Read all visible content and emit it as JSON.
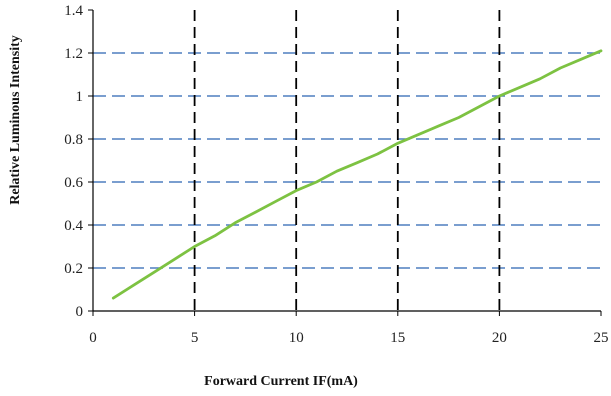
{
  "chart_data": {
    "type": "line",
    "title": "",
    "xlabel": "Forward Current IF(mA)",
    "ylabel": "Relative Luminous Intensity",
    "xlim": [
      0,
      25
    ],
    "ylim": [
      0,
      1.4
    ],
    "x_ticks": [
      "0",
      "5",
      "10",
      "15",
      "20",
      "25"
    ],
    "y_ticks": [
      "0",
      "0.2",
      "0.4",
      "0.6",
      "0.8",
      "1",
      "1.2",
      "1.4"
    ],
    "grid": {
      "vertical": "black dashed at 5, 10, 15, 20",
      "horizontal": "blue dashed at 0.2 through 1.2"
    },
    "legend": "none",
    "colors": {
      "line": "#7dc242",
      "h_grid": "#4f7fbf",
      "v_grid": "#000000",
      "axis": "#000000"
    },
    "series": [
      {
        "x": [
          1,
          2,
          3,
          4,
          5,
          6,
          7,
          8,
          9,
          10,
          11,
          12,
          13,
          14,
          15,
          16,
          17,
          18,
          19,
          20,
          21,
          22,
          23,
          24,
          25
        ],
        "values": [
          0.06,
          0.12,
          0.18,
          0.24,
          0.3,
          0.35,
          0.41,
          0.46,
          0.51,
          0.56,
          0.6,
          0.65,
          0.69,
          0.73,
          0.78,
          0.82,
          0.86,
          0.9,
          0.95,
          1.0,
          1.04,
          1.08,
          1.13,
          1.17,
          1.21
        ]
      }
    ]
  }
}
